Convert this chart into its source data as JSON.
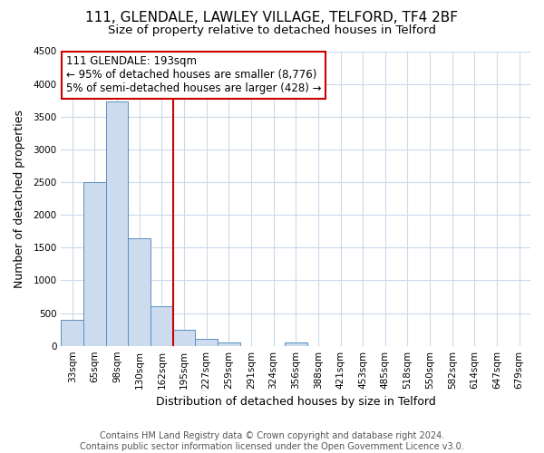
{
  "title": "111, GLENDALE, LAWLEY VILLAGE, TELFORD, TF4 2BF",
  "subtitle": "Size of property relative to detached houses in Telford",
  "xlabel": "Distribution of detached houses by size in Telford",
  "ylabel": "Number of detached properties",
  "bin_labels": [
    "33sqm",
    "65sqm",
    "98sqm",
    "130sqm",
    "162sqm",
    "195sqm",
    "227sqm",
    "259sqm",
    "291sqm",
    "324sqm",
    "356sqm",
    "388sqm",
    "421sqm",
    "453sqm",
    "485sqm",
    "518sqm",
    "550sqm",
    "582sqm",
    "614sqm",
    "647sqm",
    "679sqm"
  ],
  "bar_values": [
    390,
    2500,
    3730,
    1640,
    605,
    250,
    100,
    55,
    0,
    0,
    50,
    0,
    0,
    0,
    0,
    0,
    0,
    0,
    0,
    0,
    0
  ],
  "bar_color": "#ccdcee",
  "bar_edgecolor": "#5a8fc2",
  "ylim": [
    0,
    4500
  ],
  "yticks": [
    0,
    500,
    1000,
    1500,
    2000,
    2500,
    3000,
    3500,
    4000,
    4500
  ],
  "vline_x_index": 4.5,
  "vline_color": "#cc0000",
  "annotation_title": "111 GLENDALE: 193sqm",
  "annotation_line1": "← 95% of detached houses are smaller (8,776)",
  "annotation_line2": "5% of semi-detached houses are larger (428) →",
  "annotation_box_color": "#ffffff",
  "annotation_box_edgecolor": "#cc0000",
  "footer_line1": "Contains HM Land Registry data © Crown copyright and database right 2024.",
  "footer_line2": "Contains public sector information licensed under the Open Government Licence v3.0.",
  "background_color": "#ffffff",
  "grid_color": "#ccdaeb",
  "title_fontsize": 11,
  "subtitle_fontsize": 9.5,
  "axis_label_fontsize": 9,
  "tick_fontsize": 7.5,
  "footer_fontsize": 7,
  "annot_fontsize": 8.5
}
